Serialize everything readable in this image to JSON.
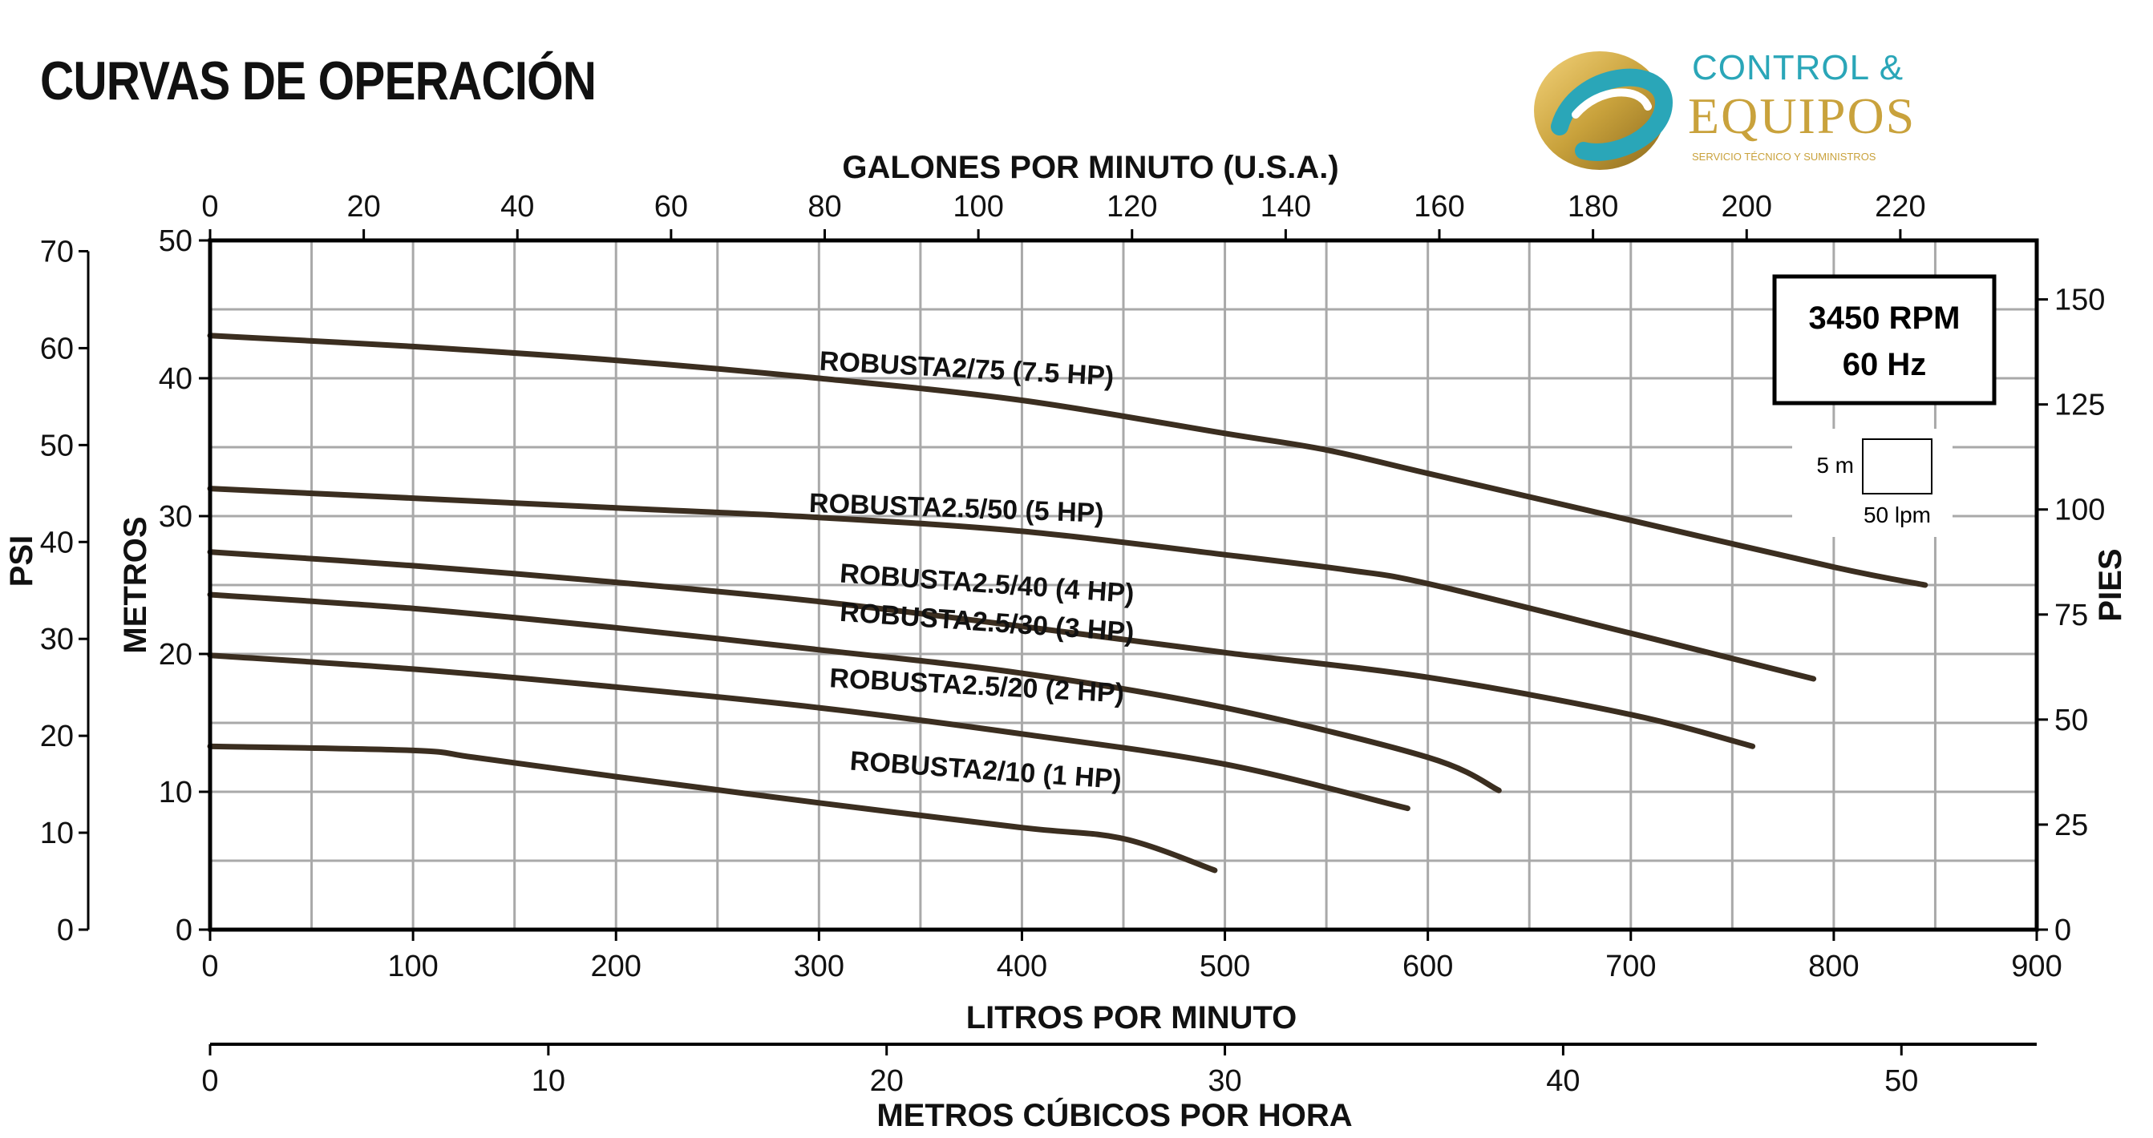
{
  "title": "CURVAS DE OPERACIÓN",
  "logo": {
    "line1": "CONTROL &",
    "line2": "EQUIPOS",
    "line3": "SERVICIO TÉCNICO Y SUMINISTROS"
  },
  "badge": {
    "line1": "3450 RPM",
    "line2": "60 Hz"
  },
  "scale_box": {
    "vertical": "5 m",
    "horizontal": "50 lpm"
  },
  "colors": {
    "curve": "#3b2e20",
    "grid": "#a9a9a9",
    "axis": "#000000"
  },
  "chart_data": {
    "type": "line",
    "xlabel": "LITROS POR MINUTO",
    "ylabel": "METROS",
    "xlim": [
      0,
      900
    ],
    "ylim": [
      0,
      50
    ],
    "grid": true,
    "x_ticks": [
      0,
      100,
      200,
      300,
      400,
      500,
      600,
      700,
      800,
      900
    ],
    "y_ticks": [
      0,
      10,
      20,
      30,
      40,
      50
    ],
    "axis_top": {
      "label": "GALONES POR MINUTO (U.S.A.)",
      "ticks": [
        0,
        20,
        40,
        60,
        80,
        100,
        120,
        140,
        160,
        180,
        200,
        220
      ],
      "factor_per_lpm": 0.264172
    },
    "axis_bottom2": {
      "label": "METROS CÚBICOS POR HORA",
      "ticks": [
        0,
        10,
        20,
        30,
        40,
        50
      ],
      "factor_per_lpm": 0.06
    },
    "axis_left_outer": {
      "label": "PSI",
      "ticks": [
        0,
        10,
        20,
        30,
        40,
        50,
        60,
        70
      ],
      "factor_per_m": 1.4223
    },
    "axis_right": {
      "label": "PIES",
      "ticks": [
        0,
        25,
        50,
        75,
        100,
        125,
        150
      ],
      "factor_per_m": 3.28084
    },
    "series": [
      {
        "name": "ROBUSTA2/75 (7.5 HP)",
        "label_at": [
          300,
          40.6
        ],
        "label_angle": 3.0,
        "points": [
          [
            0,
            43.1
          ],
          [
            100,
            42.3
          ],
          [
            200,
            41.3
          ],
          [
            300,
            40.0
          ],
          [
            400,
            38.4
          ],
          [
            500,
            36.0
          ],
          [
            550,
            34.8
          ],
          [
            600,
            33.1
          ],
          [
            700,
            29.7
          ],
          [
            800,
            26.3
          ],
          [
            845,
            25.0
          ]
        ]
      },
      {
        "name": "ROBUSTA2.5/50 (5 HP)",
        "label_at": [
          295,
          30.3
        ],
        "label_angle": 2.0,
        "points": [
          [
            0,
            32.0
          ],
          [
            100,
            31.3
          ],
          [
            200,
            30.6
          ],
          [
            300,
            29.9
          ],
          [
            400,
            28.9
          ],
          [
            500,
            27.2
          ],
          [
            560,
            26.1
          ],
          [
            600,
            25.1
          ],
          [
            700,
            21.5
          ],
          [
            790,
            18.2
          ]
        ]
      },
      {
        "name": "ROBUSTA2.5/40 (4 HP)",
        "label_at": [
          310,
          25.2
        ],
        "label_angle": 4.0,
        "points": [
          [
            0,
            27.4
          ],
          [
            100,
            26.4
          ],
          [
            200,
            25.2
          ],
          [
            300,
            23.8
          ],
          [
            400,
            22.0
          ],
          [
            500,
            20.1
          ],
          [
            600,
            18.3
          ],
          [
            700,
            15.6
          ],
          [
            760,
            13.3
          ]
        ]
      },
      {
        "name": "ROBUSTA2.5/30 (3 HP)",
        "label_at": [
          310,
          22.4
        ],
        "label_angle": 4.0,
        "points": [
          [
            0,
            24.3
          ],
          [
            100,
            23.3
          ],
          [
            200,
            21.9
          ],
          [
            300,
            20.3
          ],
          [
            400,
            18.6
          ],
          [
            500,
            16.1
          ],
          [
            600,
            12.5
          ],
          [
            635,
            10.1
          ]
        ]
      },
      {
        "name": "ROBUSTA2.5/20 (2 HP)",
        "label_at": [
          305,
          17.6
        ],
        "label_angle": 3.0,
        "points": [
          [
            0,
            19.9
          ],
          [
            100,
            18.9
          ],
          [
            200,
            17.6
          ],
          [
            300,
            16.1
          ],
          [
            400,
            14.2
          ],
          [
            500,
            12.0
          ],
          [
            590,
            8.8
          ]
        ]
      },
      {
        "name": "ROBUSTA2/10 (1 HP)",
        "label_at": [
          315,
          11.6
        ],
        "label_angle": 4.0,
        "points": [
          [
            0,
            13.3
          ],
          [
            100,
            13.0
          ],
          [
            130,
            12.5
          ],
          [
            200,
            11.1
          ],
          [
            300,
            9.2
          ],
          [
            400,
            7.4
          ],
          [
            450,
            6.6
          ],
          [
            495,
            4.3
          ]
        ]
      }
    ]
  }
}
